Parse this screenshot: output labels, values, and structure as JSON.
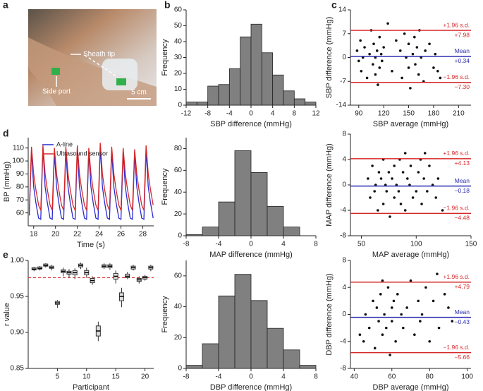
{
  "chart_data": [
    {
      "type": "image",
      "panel": "a",
      "annotations": [
        "Sheath tip",
        "Side port",
        "5 cm"
      ]
    },
    {
      "type": "histogram",
      "panel": "b",
      "xlabel": "SBP difference (mmHg)",
      "ylabel": "Frequency",
      "color": "#808080",
      "bins": [
        -12,
        -10,
        -8,
        -6,
        -4,
        -2,
        0,
        2,
        4,
        6,
        8,
        10,
        12
      ],
      "counts": [
        2,
        2,
        12,
        13,
        23,
        43,
        51,
        33,
        19,
        9,
        4,
        2
      ],
      "xlim": [
        -12,
        12
      ],
      "xticks": [
        -12,
        -8,
        -4,
        0,
        4,
        8,
        12
      ],
      "ylim": [
        0,
        60
      ],
      "yticks": [
        0,
        10,
        20,
        30,
        40,
        50,
        60
      ]
    },
    {
      "type": "scatter",
      "panel": "c",
      "xlabel": "SBP average (mmHg)",
      "ylabel": "SBP difference (mmHg)",
      "color": "#111111",
      "x": [
        88,
        90,
        92,
        93,
        95,
        97,
        100,
        103,
        105,
        107,
        108,
        110,
        110,
        112,
        113,
        115,
        115,
        117,
        118,
        120,
        125,
        130,
        135,
        140,
        142,
        145,
        147,
        150,
        150,
        152,
        155,
        157,
        158,
        160,
        162,
        163,
        165,
        168,
        170,
        175,
        180,
        182,
        185,
        188
      ],
      "y": [
        2,
        -1,
        5,
        -4,
        0,
        3,
        -6,
        1,
        8,
        -2,
        4,
        -5,
        0,
        2,
        -8,
        6,
        -3,
        1,
        -1,
        3,
        10,
        -4,
        5,
        2,
        -6,
        7,
        0,
        -3,
        4,
        -9,
        1,
        6,
        -2,
        3,
        -5,
        8,
        0,
        -7,
        2,
        4,
        -3,
        1,
        -4,
        -6
      ],
      "hlines": [
        {
          "name": "+1.96 s.d.",
          "value": 7.98,
          "label": "+7.98",
          "color": "#d62728"
        },
        {
          "name": "Mean",
          "value": 0.34,
          "label": "+0.34",
          "color": "#2b2bb0"
        },
        {
          "name": "−1.96 s.d.",
          "value": -7.3,
          "label": "−7.30",
          "color": "#d62728"
        }
      ],
      "xlim": [
        80,
        225
      ],
      "xticks": [
        90,
        120,
        150,
        180,
        210
      ],
      "ylim": [
        -14,
        14
      ],
      "yticks": [
        -14,
        -7,
        0,
        7,
        14
      ]
    },
    {
      "type": "line",
      "panel": "d",
      "xlabel": "Time (s)",
      "ylabel": "BP (mmHg)",
      "x": [
        17.6,
        17.8,
        18.0,
        18.2,
        18.45,
        18.65,
        18.85,
        19.05,
        19.25,
        19.5,
        19.7,
        19.9,
        20.1,
        20.3,
        20.55,
        20.75,
        20.95,
        21.15,
        21.35,
        21.6,
        21.8,
        22.0,
        22.2,
        22.4,
        22.65,
        22.85,
        23.05,
        23.25,
        23.45,
        23.7,
        23.9,
        24.1,
        24.3,
        24.5,
        24.75,
        24.95,
        25.15,
        25.35,
        25.55,
        25.8,
        26.0,
        26.2,
        26.4,
        26.6,
        26.85,
        27.05,
        27.25,
        27.45,
        27.65,
        27.9,
        28.1,
        28.3,
        28.5,
        28.7,
        28.95
      ],
      "series": [
        {
          "name": "A-line",
          "color": "#2a2ad0",
          "values": [
            58,
            108,
            80,
            68,
            56,
            55,
            110,
            80,
            68,
            56,
            55,
            106,
            80,
            68,
            56,
            55,
            108,
            80,
            68,
            56,
            55,
            109,
            80,
            68,
            56,
            55,
            107,
            80,
            68,
            56,
            55,
            111,
            80,
            68,
            56,
            55,
            108,
            80,
            68,
            56,
            55,
            107,
            80,
            68,
            56,
            55,
            106,
            80,
            68,
            56,
            55,
            108,
            80,
            68,
            56
          ]
        },
        {
          "name": "Ultrasound sensor",
          "color": "#d62728",
          "values": [
            62,
            111,
            90,
            78,
            66,
            62,
            112,
            90,
            78,
            66,
            62,
            110,
            90,
            78,
            66,
            62,
            111,
            90,
            78,
            66,
            62,
            112,
            90,
            78,
            66,
            62,
            110,
            90,
            78,
            66,
            62,
            114,
            90,
            78,
            66,
            62,
            111,
            90,
            78,
            66,
            62,
            110,
            90,
            78,
            66,
            62,
            109,
            90,
            78,
            66,
            62,
            112,
            90,
            78,
            66
          ]
        }
      ],
      "xlim": [
        17.5,
        29
      ],
      "xticks": [
        18,
        20,
        22,
        24,
        26,
        28
      ],
      "ylim": [
        50,
        118
      ],
      "yticks": [
        60,
        70,
        80,
        90,
        100,
        110
      ]
    },
    {
      "type": "histogram",
      "xlabel": "MAP difference (mmHg)",
      "ylabel": "Frequency",
      "color": "#808080",
      "bins": [
        -8,
        -6,
        -4,
        -2,
        0,
        2,
        4,
        6
      ],
      "counts": [
        1,
        8,
        31,
        78,
        58,
        27,
        8
      ],
      "xlim": [
        -8,
        8
      ],
      "xticks": [
        -8,
        -4,
        0,
        4,
        8
      ],
      "ylim": [
        0,
        90
      ],
      "yticks": [
        0,
        20,
        40,
        60,
        80
      ]
    },
    {
      "type": "scatter",
      "xlabel": "MAP average (mmHg)",
      "ylabel": "MAP difference (mmHg)",
      "color": "#111111",
      "x": [
        56,
        58,
        60,
        62,
        63,
        65,
        66,
        68,
        70,
        70,
        72,
        73,
        75,
        76,
        78,
        80,
        80,
        82,
        84,
        85,
        86,
        88,
        90,
        90,
        92,
        94,
        95,
        97,
        100,
        102,
        104,
        105,
        107,
        108,
        110,
        112,
        115,
        118,
        120,
        124
      ],
      "y": [
        1,
        -2,
        3,
        -1,
        0,
        -4,
        2,
        1,
        -3,
        4,
        0,
        -1,
        2,
        -5,
        1,
        3,
        -2,
        0,
        -1,
        4,
        -3,
        2,
        5,
        -4,
        1,
        0,
        3,
        -2,
        -1,
        2,
        4,
        -3,
        1,
        5,
        -1,
        3,
        0,
        -2,
        1,
        -4
      ],
      "hlines": [
        {
          "name": "+1.96 s.d.",
          "value": 4.13,
          "label": "+4.13",
          "color": "#d62728"
        },
        {
          "name": "Mean",
          "value": -0.18,
          "label": "−0.18",
          "color": "#2b2bb0"
        },
        {
          "name": "−1.96 s.d.",
          "value": -4.48,
          "label": "−4.48",
          "color": "#d62728"
        }
      ],
      "xlim": [
        40,
        150
      ],
      "xticks": [
        50,
        100,
        150
      ],
      "ylim": [
        -8,
        8
      ],
      "yticks": [
        -8,
        -4,
        0,
        4,
        8
      ]
    },
    {
      "type": "box",
      "panel": "e",
      "xlabel": "Participant",
      "ylabel": "r value",
      "color": "#333333",
      "x": [
        1,
        2,
        3,
        4,
        5,
        6,
        7,
        8,
        9,
        10,
        11,
        12,
        13,
        14,
        15,
        16,
        17,
        18,
        19,
        20,
        21
      ],
      "boxes": [
        {
          "min": 0.985,
          "q1": 0.987,
          "median": 0.988,
          "q3": 0.99,
          "max": 0.991
        },
        {
          "min": 0.986,
          "q1": 0.988,
          "median": 0.989,
          "q3": 0.991,
          "max": 0.992
        },
        {
          "min": 0.99,
          "q1": 0.992,
          "median": 0.993,
          "q3": 0.995,
          "max": 0.996
        },
        {
          "min": 0.986,
          "q1": 0.989,
          "median": 0.99,
          "q3": 0.992,
          "max": 0.994
        },
        {
          "min": 0.934,
          "q1": 0.939,
          "median": 0.941,
          "q3": 0.943,
          "max": 0.945
        },
        {
          "min": 0.978,
          "q1": 0.983,
          "median": 0.985,
          "q3": 0.987,
          "max": 0.99
        },
        {
          "min": 0.976,
          "q1": 0.981,
          "median": 0.983,
          "q3": 0.985,
          "max": 0.988
        },
        {
          "min": 0.974,
          "q1": 0.98,
          "median": 0.983,
          "q3": 0.986,
          "max": 0.989
        },
        {
          "min": 0.988,
          "q1": 0.991,
          "median": 0.993,
          "q3": 0.995,
          "max": 0.997
        },
        {
          "min": 0.976,
          "q1": 0.98,
          "median": 0.983,
          "q3": 0.986,
          "max": 0.99
        },
        {
          "min": 0.966,
          "q1": 0.969,
          "median": 0.972,
          "q3": 0.975,
          "max": 0.978
        },
        {
          "min": 0.888,
          "q1": 0.895,
          "median": 0.902,
          "q3": 0.909,
          "max": 0.915
        },
        {
          "min": 0.988,
          "q1": 0.99,
          "median": 0.992,
          "q3": 0.994,
          "max": 0.996
        },
        {
          "min": 0.987,
          "q1": 0.99,
          "median": 0.992,
          "q3": 0.994,
          "max": 0.996
        },
        {
          "min": 0.968,
          "q1": 0.974,
          "median": 0.978,
          "q3": 0.982,
          "max": 0.986
        },
        {
          "min": 0.935,
          "q1": 0.944,
          "median": 0.95,
          "q3": 0.955,
          "max": 0.962
        },
        {
          "min": 0.974,
          "q1": 0.976,
          "median": 0.978,
          "q3": 0.981,
          "max": 0.984
        },
        {
          "min": 0.986,
          "q1": 0.988,
          "median": 0.99,
          "q3": 0.992,
          "max": 0.994
        },
        {
          "min": 0.968,
          "q1": 0.971,
          "median": 0.973,
          "q3": 0.975,
          "max": 0.978
        },
        {
          "min": 0.972,
          "q1": 0.974,
          "median": 0.976,
          "q3": 0.978,
          "max": 0.98
        },
        {
          "min": 0.985,
          "q1": 0.988,
          "median": 0.99,
          "q3": 0.992,
          "max": 0.994
        }
      ],
      "reference_line": 0.976,
      "reference_color": "#d62728",
      "xlim": [
        0,
        21.5
      ],
      "xticks": [
        5,
        10,
        15,
        20
      ],
      "ylim": [
        0.85,
        1.0
      ],
      "yticks": [
        {
          "value": 0.85,
          "label": "0.85"
        },
        {
          "value": 0.9,
          "label": "0.90"
        },
        0.95,
        {
          "value": 1.0,
          "label": "1.00"
        }
      ]
    },
    {
      "type": "histogram",
      "xlabel": "DBP difference (mmHg)",
      "ylabel": "Frequency",
      "color": "#808080",
      "bins": [
        -8,
        -6,
        -4,
        -2,
        0,
        2,
        4,
        6,
        8
      ],
      "counts": [
        2,
        16,
        47,
        61,
        44,
        26,
        12,
        2
      ],
      "xlim": [
        -8,
        8
      ],
      "xticks": [
        -8,
        -4,
        0,
        4,
        8
      ],
      "ylim": [
        0,
        70
      ],
      "yticks": [
        0,
        20,
        40,
        60
      ]
    },
    {
      "type": "scatter",
      "xlabel": "DBP average (mmHg)",
      "ylabel": "DBP difference (mmHg)",
      "color": "#111111",
      "x": [
        43,
        45,
        46,
        48,
        50,
        51,
        52,
        53,
        54,
        55,
        55,
        56,
        57,
        58,
        59,
        60,
        60,
        61,
        62,
        63,
        65,
        66,
        68,
        70,
        72,
        74,
        75,
        76,
        78,
        80,
        82,
        84,
        85,
        88,
        90,
        92
      ],
      "y": [
        -3,
        -4,
        0,
        -2,
        2,
        -5,
        1,
        -1,
        3,
        -3,
        5,
        0,
        -2,
        4,
        -6,
        1,
        -1,
        2,
        -4,
        3,
        0,
        -2,
        1,
        5,
        -3,
        2,
        -1,
        0,
        4,
        -4,
        2,
        6,
        -2,
        3,
        1,
        -1
      ],
      "hlines": [
        {
          "name": "+1.96 s.d.",
          "value": 4.79,
          "label": "+4.79",
          "color": "#d62728"
        },
        {
          "name": "Mean",
          "value": -0.43,
          "label": "−0.43",
          "color": "#2b2bb0"
        },
        {
          "name": "−1.96 s.d.",
          "value": -5.66,
          "label": "−5.66",
          "color": "#d62728"
        }
      ],
      "xlim": [
        38,
        102
      ],
      "xticks": [
        40,
        60,
        80,
        100
      ],
      "ylim": [
        -8,
        8
      ],
      "yticks": [
        -8,
        -4,
        0,
        4,
        8
      ]
    }
  ]
}
